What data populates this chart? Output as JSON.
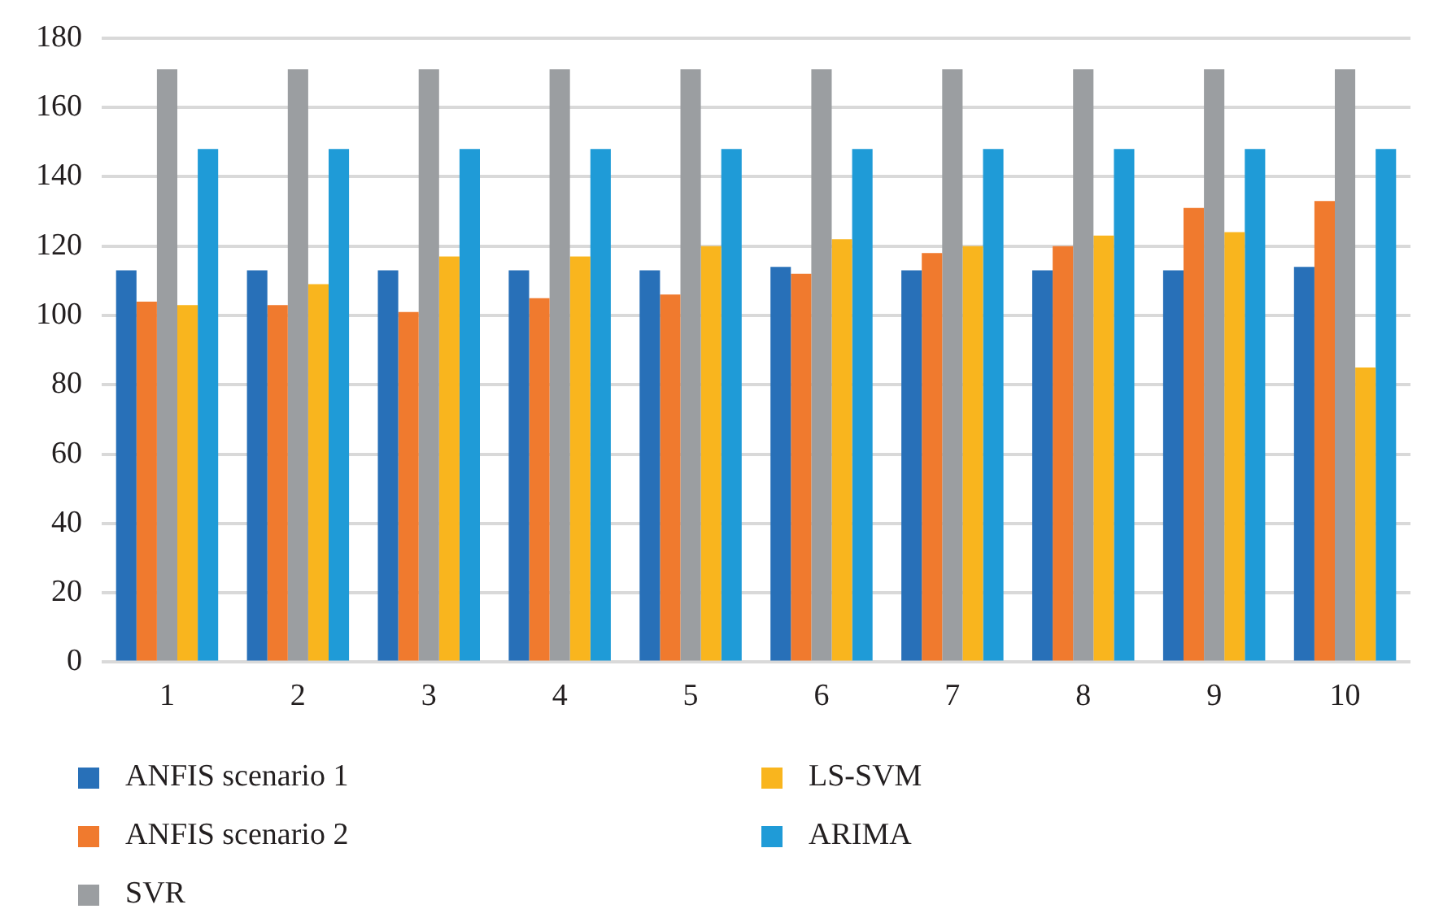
{
  "chart_data": {
    "type": "bar",
    "categories": [
      "1",
      "2",
      "3",
      "4",
      "5",
      "6",
      "7",
      "8",
      "9",
      "10"
    ],
    "series": [
      {
        "name": "ANFIS scenario 1",
        "color": "#2870b8",
        "values": [
          113,
          113,
          113,
          113,
          113,
          114,
          113,
          113,
          113,
          114
        ]
      },
      {
        "name": "ANFIS scenario 2",
        "color": "#f07a2e",
        "values": [
          104,
          103,
          101,
          105,
          106,
          112,
          118,
          120,
          131,
          133
        ]
      },
      {
        "name": "SVR",
        "color": "#9b9ea1",
        "values": [
          171,
          171,
          171,
          171,
          171,
          171,
          171,
          171,
          171,
          171
        ]
      },
      {
        "name": "LS-SVM",
        "color": "#f9b51e",
        "values": [
          103,
          109,
          117,
          117,
          120,
          122,
          120,
          123,
          124,
          85
        ]
      },
      {
        "name": "ARIMA",
        "color": "#1f9bd7",
        "values": [
          148,
          148,
          148,
          148,
          148,
          148,
          148,
          148,
          148,
          148
        ]
      }
    ],
    "ylim": [
      0,
      180
    ],
    "yticks": [
      0,
      20,
      40,
      60,
      80,
      100,
      120,
      140,
      160,
      180
    ],
    "grid": "y",
    "legend": "bottom"
  }
}
